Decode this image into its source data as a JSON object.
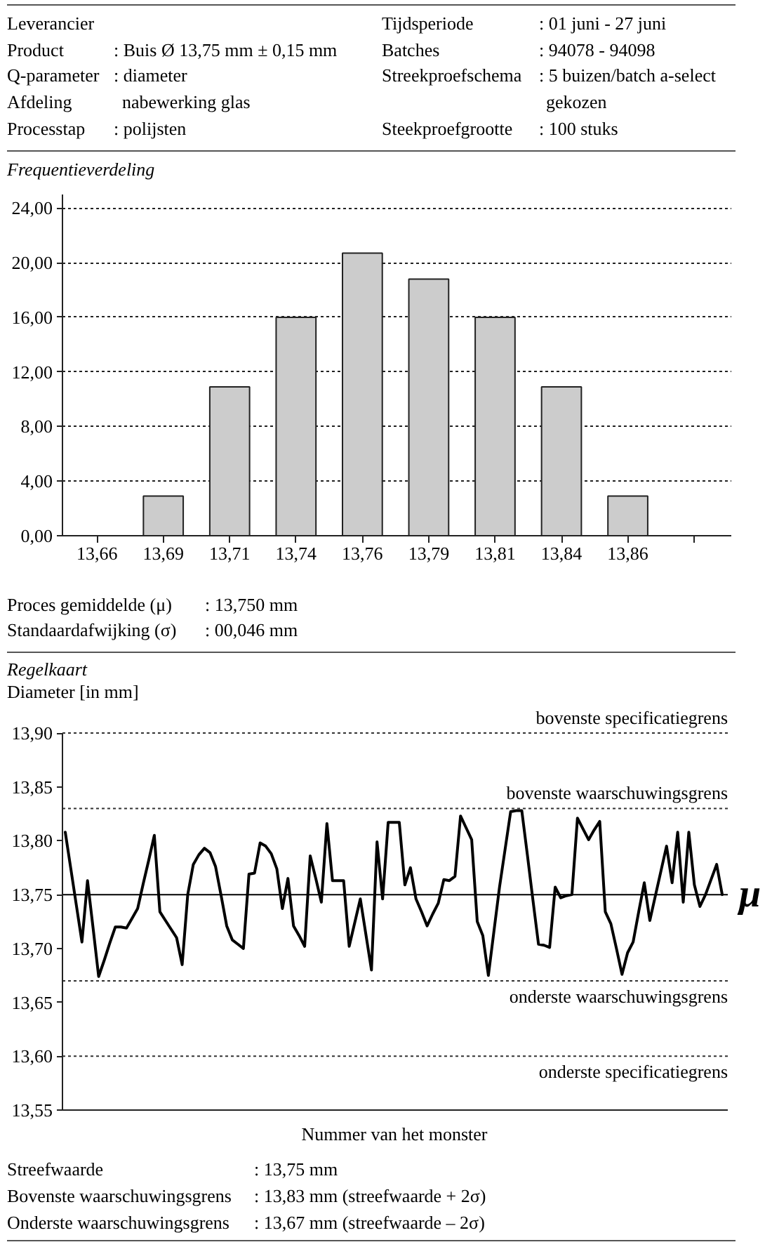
{
  "chart_data": [
    {
      "type": "bar",
      "title": "Frequentieverdeling",
      "categories": [
        "13,66",
        "13,69",
        "13,71",
        "13,74",
        "13,76",
        "13,79",
        "13,81",
        "13,84",
        "13,86",
        null
      ],
      "values": [
        null,
        2.9,
        10.9,
        16,
        20.7,
        18.8,
        16,
        10.9,
        2.9,
        null
      ],
      "color": "#cccccc",
      "ylim": [
        0,
        25
      ],
      "yticks": [
        {
          "value": 0,
          "label": "0,00"
        },
        {
          "value": 4,
          "label": "4,00"
        },
        {
          "value": 8,
          "label": "8,00"
        },
        {
          "value": 12,
          "label": "12,00"
        },
        {
          "value": 16,
          "label": "16,00"
        },
        {
          "value": 20,
          "label": "20,00"
        },
        {
          "value": 24,
          "label": "24,00"
        }
      ],
      "grid": "y",
      "annotations": [
        "Leverancier",
        "Product",
        ": Buis Ø 13,75 mm ± 0,15 mm",
        "Q-parameter",
        ": diameter",
        "Afdeling",
        "nabewerking glas",
        "Processtap",
        ": polijsten",
        "Tijdsperiode",
        ": 01 juni - 27 juni",
        "Batches",
        ": 94078 - 94098",
        "Streekproefschema",
        ": 5 buizen/batch a-select",
        "gekozen",
        "Steekproefgrootte",
        ": 100 stuks",
        "Proces gemiddelde (μ)",
        ": 13,750 mm",
        "Standaardafwijking (σ)",
        ": 00,046 mm"
      ]
    },
    {
      "type": "line",
      "title": "Regelkaart",
      "ylabel": "Diameter [in mm]",
      "xlabel": "Nummer van het monster",
      "color": "#000000",
      "categories": [
        null,
        null,
        null,
        null,
        null,
        null,
        null,
        null,
        null,
        null,
        null,
        null,
        null,
        null,
        null,
        null,
        null,
        null,
        null,
        null,
        null,
        null,
        null,
        null,
        null,
        null,
        null,
        null,
        null,
        null,
        null,
        null,
        null,
        null,
        null,
        null,
        null,
        null,
        null,
        null,
        null,
        null,
        null,
        null,
        null,
        null,
        null,
        null,
        null,
        null,
        null,
        null,
        null,
        null,
        null,
        null,
        null,
        null,
        null,
        null,
        null,
        null,
        null,
        null,
        null,
        null,
        null,
        null,
        null,
        null,
        null,
        null,
        null,
        null,
        null,
        null,
        null,
        null,
        null,
        null,
        null,
        null,
        null,
        null,
        null,
        null,
        null,
        null,
        null,
        null,
        null,
        null,
        null,
        null,
        null,
        null,
        null,
        null,
        null,
        null,
        null,
        null,
        null,
        null,
        null,
        null,
        null,
        null,
        null,
        null,
        null,
        null,
        null,
        null,
        null,
        null,
        null,
        null,
        null
      ],
      "values": [
        13.808,
        13.774,
        13.74,
        13.706,
        13.763,
        13.719,
        13.674,
        13.689,
        13.705,
        13.72,
        13.72,
        13.719,
        13.728,
        13.737,
        13.76,
        13.782,
        13.805,
        13.734,
        13.726,
        13.718,
        13.71,
        13.685,
        13.75,
        13.778,
        13.787,
        13.793,
        13.789,
        13.776,
        13.749,
        13.721,
        13.708,
        13.704,
        13.7,
        13.769,
        13.77,
        13.798,
        13.795,
        13.788,
        13.774,
        13.737,
        13.765,
        13.721,
        13.712,
        13.702,
        13.786,
        13.765,
        13.743,
        13.816,
        13.763,
        13.763,
        13.763,
        13.702,
        13.724,
        13.746,
        13.713,
        13.68,
        13.799,
        13.746,
        13.817,
        13.817,
        13.817,
        13.759,
        13.775,
        13.746,
        13.734,
        13.721,
        13.732,
        13.742,
        13.764,
        13.763,
        13.767,
        13.823,
        13.812,
        13.801,
        13.725,
        13.712,
        13.675,
        13.716,
        13.757,
        13.792,
        13.827,
        13.828,
        13.828,
        13.787,
        13.745,
        13.704,
        13.703,
        13.701,
        13.757,
        13.747,
        13.749,
        13.75,
        13.821,
        13.811,
        13.801,
        13.81,
        13.818,
        13.734,
        13.723,
        13.7,
        13.676,
        13.696,
        13.706,
        13.734,
        13.761,
        13.726,
        13.749,
        13.772,
        13.795,
        13.761,
        13.808,
        13.743,
        13.808,
        13.759,
        13.739,
        13.75,
        13.764,
        13.778,
        13.75
      ],
      "ylim": [
        13.55,
        13.9
      ],
      "yticks": [
        {
          "value": 13.55,
          "label": "13,55"
        },
        {
          "value": 13.6,
          "label": "13,60"
        },
        {
          "value": 13.65,
          "label": "13,65"
        },
        {
          "value": 13.7,
          "label": "13,70"
        },
        {
          "value": 13.75,
          "label": "13,75"
        },
        {
          "value": 13.8,
          "label": "13,80"
        },
        {
          "value": 13.85,
          "label": "13,85"
        },
        {
          "value": 13.9,
          "label": "13,90"
        }
      ],
      "ref_lines": [
        {
          "axis": "y",
          "value": 13.9,
          "label": "bovenste specificatiegrens",
          "line_style": "dashed",
          "color": "#333333"
        },
        {
          "axis": "y",
          "value": 13.83,
          "label": "bovenste waarschuwingsgrens",
          "line_style": "dashed",
          "color": "#333333"
        },
        {
          "axis": "y",
          "value": 13.75,
          "label": "μ",
          "line_style": "solid",
          "color": "#000000"
        },
        {
          "axis": "y",
          "value": 13.67,
          "label": "onderste waarschuwingsgrens",
          "line_style": "dashed",
          "color": "#333333"
        },
        {
          "axis": "y",
          "value": 13.6,
          "label": "onderste specificatiegrens",
          "line_style": "dashed",
          "color": "#333333"
        }
      ],
      "annotations": [
        "Streefwaarde",
        ": 13,75 mm",
        "Bovenste waarschuwingsgrens",
        ": 13,83 mm (streefwaarde + 2σ)",
        "Onderste waarschuwingsgrens",
        ": 13,67 mm (streefwaarde – 2σ)"
      ]
    }
  ]
}
